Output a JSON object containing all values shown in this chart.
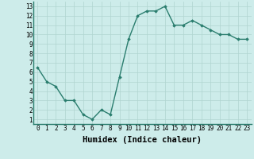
{
  "x": [
    0,
    1,
    2,
    3,
    4,
    5,
    6,
    7,
    8,
    9,
    10,
    11,
    12,
    13,
    14,
    15,
    16,
    17,
    18,
    19,
    20,
    21,
    22,
    23
  ],
  "y": [
    6.5,
    5.0,
    4.5,
    3.0,
    3.0,
    1.5,
    1.0,
    2.0,
    1.5,
    5.5,
    9.5,
    12.0,
    12.5,
    12.5,
    13.0,
    11.0,
    11.0,
    11.5,
    11.0,
    10.5,
    10.0,
    10.0,
    9.5,
    9.5
  ],
  "xlim": [
    -0.5,
    23.5
  ],
  "ylim": [
    0.5,
    13.5
  ],
  "yticks": [
    1,
    2,
    3,
    4,
    5,
    6,
    7,
    8,
    9,
    10,
    11,
    12,
    13
  ],
  "xticks": [
    0,
    1,
    2,
    3,
    4,
    5,
    6,
    7,
    8,
    9,
    10,
    11,
    12,
    13,
    14,
    15,
    16,
    17,
    18,
    19,
    20,
    21,
    22,
    23
  ],
  "xlabel": "Humidex (Indice chaleur)",
  "line_color": "#2a7d6e",
  "marker": "D",
  "marker_size": 1.8,
  "line_width": 1.0,
  "bg_color": "#cdecea",
  "grid_color": "#b0d4d0",
  "tick_label_fontsize": 5.5,
  "xlabel_fontsize": 7.5
}
